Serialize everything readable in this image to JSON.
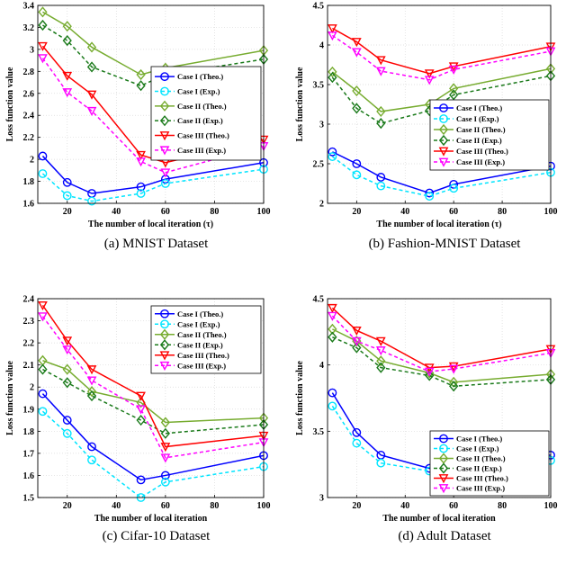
{
  "series_styles": [
    {
      "color": "#0000ff",
      "dash": "",
      "marker": "circle"
    },
    {
      "color": "#00e5ff",
      "dash": "4,3",
      "marker": "circle"
    },
    {
      "color": "#77ac30",
      "dash": "",
      "marker": "diamond"
    },
    {
      "color": "#1a7a1a",
      "dash": "4,3",
      "marker": "diamond"
    },
    {
      "color": "#ff0000",
      "dash": "",
      "marker": "tri-down"
    },
    {
      "color": "#ff00ff",
      "dash": "4,3",
      "marker": "tri-down"
    }
  ],
  "chart_data": [
    {
      "type": "line",
      "caption": "(a) MNIST Dataset",
      "xlabel": "The number of local iteration (τ)",
      "ylabel": "Loss function value",
      "xlim": [
        8,
        100
      ],
      "ylim": [
        1.6,
        3.4
      ],
      "xticks": [
        20,
        40,
        60,
        80,
        100
      ],
      "yticks": [
        1.6,
        1.8,
        2,
        2.2,
        2.4,
        2.6,
        2.8,
        3,
        3.2,
        3.4
      ],
      "grid": true,
      "legend_position": "center-right",
      "x": [
        10,
        20,
        30,
        50,
        60,
        100
      ],
      "series": [
        {
          "name": "Case I (Theo.)",
          "values": [
            2.03,
            1.79,
            1.69,
            1.75,
            1.82,
            1.97
          ]
        },
        {
          "name": "Case I (Exp.)",
          "values": [
            1.87,
            1.67,
            1.62,
            1.69,
            1.78,
            1.91
          ]
        },
        {
          "name": "Case II (Theo.)",
          "values": [
            3.34,
            3.21,
            3.02,
            2.77,
            2.83,
            2.99
          ]
        },
        {
          "name": "Case II (Exp.)",
          "values": [
            3.22,
            3.08,
            2.84,
            2.67,
            2.77,
            2.91
          ]
        },
        {
          "name": "Case III (Theo.)",
          "values": [
            3.03,
            2.76,
            2.59,
            2.04,
            1.97,
            2.18
          ]
        },
        {
          "name": "Case III (Exp.)",
          "values": [
            2.92,
            2.61,
            2.44,
            1.98,
            1.88,
            2.12
          ]
        }
      ]
    },
    {
      "type": "line",
      "caption": "(b) Fashion-MNIST Dataset",
      "xlabel": "The number of local iteration (τ)",
      "ylabel": "Loss function value",
      "xlim": [
        8,
        100
      ],
      "ylim": [
        2,
        4.5
      ],
      "xticks": [
        20,
        40,
        60,
        80,
        100
      ],
      "yticks": [
        2,
        2.5,
        3,
        3.5,
        4,
        4.5
      ],
      "grid": true,
      "legend_position": "bottom-right",
      "x": [
        10,
        20,
        30,
        50,
        60,
        100
      ],
      "series": [
        {
          "name": "Case I (Theo.)",
          "values": [
            2.65,
            2.5,
            2.33,
            2.13,
            2.24,
            2.47
          ]
        },
        {
          "name": "Case I (Exp.)",
          "values": [
            2.59,
            2.36,
            2.22,
            2.09,
            2.19,
            2.39
          ]
        },
        {
          "name": "Case II (Theo.)",
          "values": [
            3.66,
            3.42,
            3.16,
            3.25,
            3.45,
            3.7
          ]
        },
        {
          "name": "Case II (Exp.)",
          "values": [
            3.59,
            3.2,
            3.01,
            3.17,
            3.37,
            3.61
          ]
        },
        {
          "name": "Case III (Theo.)",
          "values": [
            4.21,
            4.04,
            3.81,
            3.64,
            3.73,
            3.98
          ]
        },
        {
          "name": "Case III (Exp.)",
          "values": [
            4.12,
            3.91,
            3.67,
            3.56,
            3.69,
            3.92
          ]
        }
      ]
    },
    {
      "type": "line",
      "caption": "(c) Cifar-10 Dataset",
      "xlabel": "The number of local iteration",
      "ylabel": "Loss function value",
      "xlim": [
        8,
        100
      ],
      "ylim": [
        1.5,
        2.4
      ],
      "xticks": [
        20,
        40,
        60,
        80,
        100
      ],
      "yticks": [
        1.5,
        1.6,
        1.7,
        1.8,
        1.9,
        2,
        2.1,
        2.2,
        2.3,
        2.4
      ],
      "grid": true,
      "legend_position": "top-right",
      "x": [
        10,
        20,
        30,
        50,
        60,
        100
      ],
      "series": [
        {
          "name": "Case I (Theo.)",
          "values": [
            1.97,
            1.85,
            1.73,
            1.58,
            1.6,
            1.69
          ]
        },
        {
          "name": "Case I (Exp.)",
          "values": [
            1.89,
            1.79,
            1.67,
            1.5,
            1.57,
            1.64
          ]
        },
        {
          "name": "Case II (Theo.)",
          "values": [
            2.12,
            2.08,
            1.98,
            1.93,
            1.84,
            1.86
          ]
        },
        {
          "name": "Case II (Exp.)",
          "values": [
            2.08,
            2.02,
            1.96,
            1.85,
            1.79,
            1.83
          ]
        },
        {
          "name": "Case III (Theo.)",
          "values": [
            2.37,
            2.21,
            2.08,
            1.96,
            1.73,
            1.78
          ]
        },
        {
          "name": "Case III (Exp.)",
          "values": [
            2.32,
            2.17,
            2.03,
            1.9,
            1.68,
            1.75
          ]
        }
      ]
    },
    {
      "type": "line",
      "caption": "(d) Adult Dataset",
      "xlabel": "The number of local iteration",
      "ylabel": "Loss function value",
      "xlim": [
        8,
        100
      ],
      "ylim": [
        3,
        4.5
      ],
      "xticks": [
        20,
        40,
        60,
        80,
        100
      ],
      "yticks": [
        3,
        3.5,
        4,
        4.5
      ],
      "grid": true,
      "legend_position": "bottom-right",
      "x": [
        10,
        20,
        30,
        50,
        60,
        100
      ],
      "series": [
        {
          "name": "Case I (Theo.)",
          "values": [
            3.79,
            3.49,
            3.32,
            3.22,
            3.25,
            3.32
          ]
        },
        {
          "name": "Case I (Exp.)",
          "values": [
            3.69,
            3.41,
            3.26,
            3.2,
            3.22,
            3.28
          ]
        },
        {
          "name": "Case II (Theo.)",
          "values": [
            4.27,
            4.18,
            4.03,
            3.94,
            3.87,
            3.93
          ]
        },
        {
          "name": "Case II (Exp.)",
          "values": [
            4.21,
            4.13,
            3.98,
            3.92,
            3.84,
            3.89
          ]
        },
        {
          "name": "Case III (Theo.)",
          "values": [
            4.43,
            4.26,
            4.18,
            3.98,
            3.99,
            4.12
          ]
        },
        {
          "name": "Case III (Exp.)",
          "values": [
            4.37,
            4.18,
            4.11,
            3.95,
            3.97,
            4.09
          ]
        }
      ]
    }
  ]
}
